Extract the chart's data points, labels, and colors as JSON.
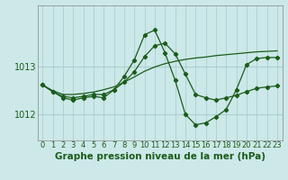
{
  "background_color": "#cce8e8",
  "grid_color": "#aacfcf",
  "line_color": "#1a5c1a",
  "marker_color": "#1a5c1a",
  "title": "Graphe pression niveau de la mer (hPa)",
  "ylim": [
    1011.45,
    1014.3
  ],
  "xlim": [
    -0.5,
    23.5
  ],
  "yticks": [
    1012,
    1013
  ],
  "xticks": [
    0,
    1,
    2,
    3,
    4,
    5,
    6,
    7,
    8,
    9,
    10,
    11,
    12,
    13,
    14,
    15,
    16,
    17,
    18,
    19,
    20,
    21,
    22,
    23
  ],
  "series1_x": [
    0,
    1,
    2,
    3,
    4,
    5,
    6,
    7,
    8,
    9,
    10,
    11,
    12,
    13,
    14,
    15,
    16,
    17,
    18,
    19,
    20,
    21,
    22,
    23
  ],
  "series1_y": [
    1012.62,
    1012.5,
    1012.42,
    1012.42,
    1012.44,
    1012.47,
    1012.52,
    1012.58,
    1012.68,
    1012.79,
    1012.91,
    1013.0,
    1013.07,
    1013.12,
    1013.16,
    1013.19,
    1013.21,
    1013.24,
    1013.26,
    1013.28,
    1013.3,
    1013.32,
    1013.33,
    1013.34
  ],
  "series2_x": [
    0,
    1,
    2,
    3,
    4,
    5,
    6,
    7,
    8,
    9,
    10,
    11,
    12,
    13,
    14,
    15,
    16,
    17,
    18,
    19,
    20,
    21,
    22,
    23
  ],
  "series2_y": [
    1012.62,
    1012.48,
    1012.38,
    1012.35,
    1012.38,
    1012.42,
    1012.42,
    1012.52,
    1012.68,
    1012.9,
    1013.22,
    1013.45,
    1013.5,
    1013.28,
    1012.85,
    1012.42,
    1012.35,
    1012.3,
    1012.35,
    1012.4,
    1012.48,
    1012.55,
    1012.58,
    1012.6
  ],
  "series3_x": [
    0,
    1,
    2,
    3,
    4,
    5,
    6,
    7,
    8,
    9,
    10,
    11,
    12,
    13,
    14,
    15,
    16,
    17,
    18,
    19,
    20,
    21,
    22,
    23
  ],
  "series3_y": [
    1012.62,
    1012.48,
    1012.35,
    1012.3,
    1012.35,
    1012.38,
    1012.35,
    1012.52,
    1012.8,
    1013.15,
    1013.68,
    1013.78,
    1013.3,
    1012.72,
    1012.0,
    1011.78,
    1011.82,
    1011.95,
    1012.1,
    1012.52,
    1013.05,
    1013.18,
    1013.2,
    1013.2
  ],
  "title_fontsize": 7.5,
  "tick_fontsize": 6.0,
  "ytick_fontsize": 7.0
}
